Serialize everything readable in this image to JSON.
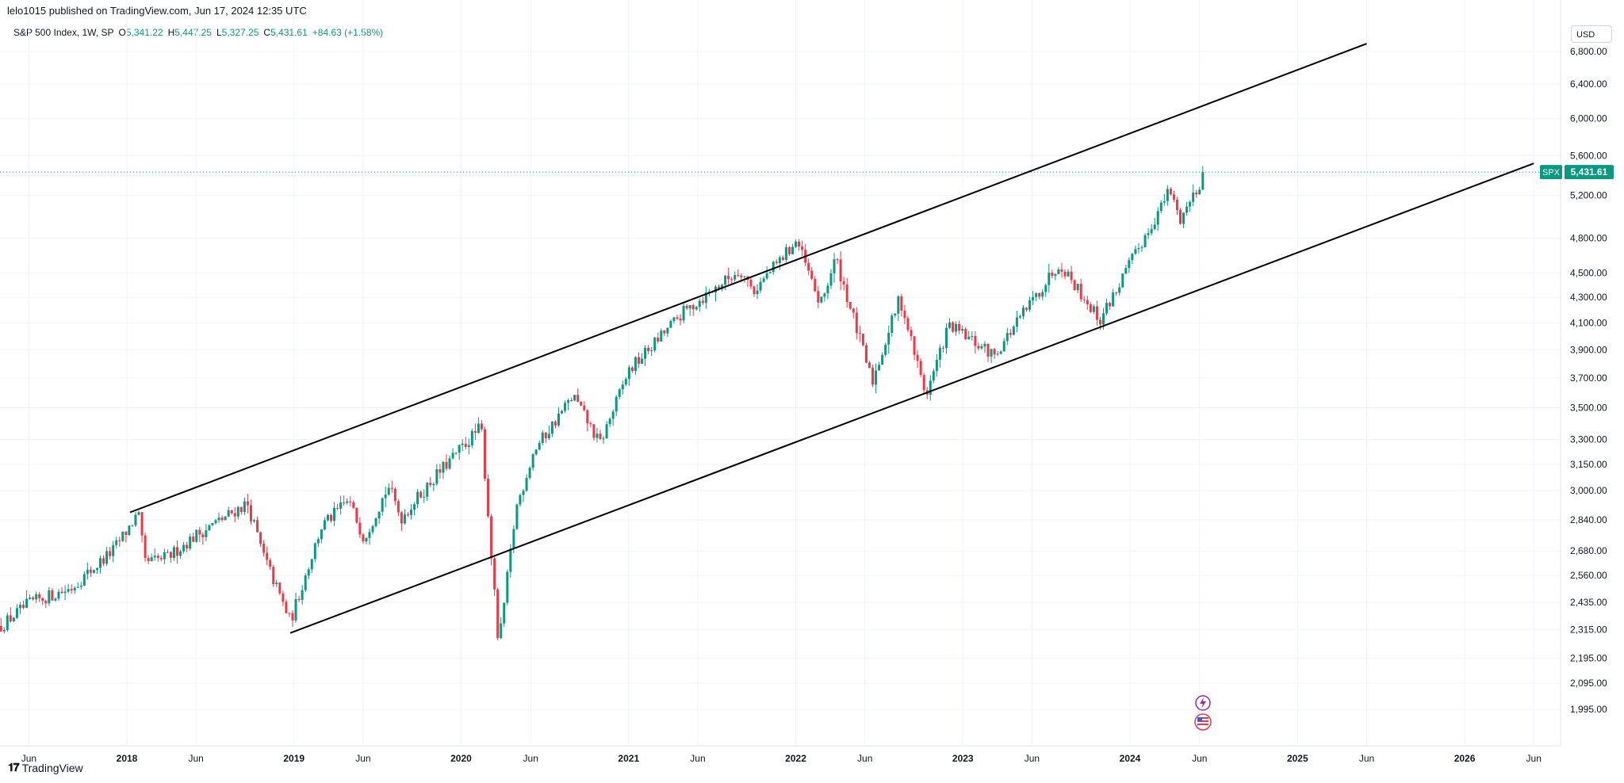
{
  "header": {
    "attribution": "lelo1015 published on TradingView.com, Jun 17, 2024 12:35 UTC"
  },
  "legend": {
    "symbol": "S&P 500 Index, 1W, SP",
    "open_label": "O",
    "open": "5,341.22",
    "high_label": "H",
    "high": "5,447.25",
    "low_label": "L",
    "low": "5,327.25",
    "close_label": "C",
    "close": "5,431.61",
    "change": "+84.63 (+1.58%)"
  },
  "price_scale": {
    "currency": "USD",
    "last_price_symbol": "SPX",
    "last_price": "5,431.61"
  },
  "footer": {
    "brand": "TradingView"
  },
  "colors": {
    "up": "#089981",
    "down": "#f23645",
    "line": "#000000",
    "grid": "#f0f3fa"
  },
  "chart_data": {
    "type": "candlestick",
    "title": "S&P 500 Index, 1W, SP",
    "log_scale": true,
    "grid": true,
    "ylim": [
      1900,
      7000
    ],
    "y_ticks": [
      "6,800.00",
      "6,400.00",
      "6,000.00",
      "5,600.00",
      "5,200.00",
      "4,800.00",
      "4,500.00",
      "4,300.00",
      "4,100.00",
      "3,900.00",
      "3,700.00",
      "3,500.00",
      "3,300.00",
      "3,150.00",
      "3,000.00",
      "2,840.00",
      "2,680.00",
      "2,560.00",
      "2,435.00",
      "2,315.00",
      "2,195.00",
      "2,095.00",
      "1,995.00"
    ],
    "x_ticks": [
      "Jun",
      "2018",
      "Jun",
      "2019",
      "Jun",
      "2020",
      "Jun",
      "2021",
      "Jun",
      "2022",
      "Jun",
      "2023",
      "Jun",
      "2024",
      "Jun",
      "2025",
      "Jun",
      "2026",
      "Jun"
    ],
    "x_tick_dates": [
      "2017-06-01",
      "2018-01-01",
      "2018-06-01",
      "2019-01-01",
      "2019-06-01",
      "2020-01-01",
      "2020-06-01",
      "2021-01-01",
      "2021-06-01",
      "2022-01-01",
      "2022-06-01",
      "2023-01-01",
      "2023-06-01",
      "2024-01-01",
      "2024-06-01",
      "2025-01-01",
      "2025-06-01",
      "2026-01-01",
      "2026-06-01"
    ],
    "price_path": [
      [
        "2017-04-01",
        2330
      ],
      [
        "2017-06-01",
        2430
      ],
      [
        "2017-09-01",
        2500
      ],
      [
        "2017-12-01",
        2680
      ],
      [
        "2018-01-26",
        2872
      ],
      [
        "2018-02-09",
        2620
      ],
      [
        "2018-04-01",
        2650
      ],
      [
        "2018-06-01",
        2760
      ],
      [
        "2018-09-21",
        2930
      ],
      [
        "2018-10-26",
        2660
      ],
      [
        "2018-12-24",
        2350
      ],
      [
        "2019-03-01",
        2800
      ],
      [
        "2019-04-30",
        2945
      ],
      [
        "2019-06-03",
        2745
      ],
      [
        "2019-07-26",
        3025
      ],
      [
        "2019-08-23",
        2850
      ],
      [
        "2019-11-01",
        3065
      ],
      [
        "2020-02-14",
        3380
      ],
      [
        "2020-03-23",
        2237
      ],
      [
        "2020-04-30",
        2900
      ],
      [
        "2020-06-08",
        3230
      ],
      [
        "2020-09-02",
        3580
      ],
      [
        "2020-10-30",
        3270
      ],
      [
        "2021-01-01",
        3750
      ],
      [
        "2021-04-30",
        4180
      ],
      [
        "2021-09-02",
        4530
      ],
      [
        "2021-10-01",
        4350
      ],
      [
        "2022-01-03",
        4780
      ],
      [
        "2022-02-24",
        4230
      ],
      [
        "2022-03-29",
        4630
      ],
      [
        "2022-06-17",
        3670
      ],
      [
        "2022-08-16",
        4300
      ],
      [
        "2022-10-12",
        3580
      ],
      [
        "2022-12-01",
        4080
      ],
      [
        "2023-03-10",
        3860
      ],
      [
        "2023-07-31",
        4590
      ],
      [
        "2023-10-27",
        4120
      ],
      [
        "2024-03-28",
        5250
      ],
      [
        "2024-04-19",
        4970
      ],
      [
        "2024-06-14",
        5431.61
      ]
    ],
    "annotations": {
      "channel_upper": {
        "start": [
          "2018-01-08",
          2880
        ],
        "end": [
          "2025-06-01",
          6900
        ]
      },
      "channel_lower": {
        "start": [
          "2018-12-24",
          2300
        ],
        "end": [
          "2026-06-01",
          5520
        ]
      },
      "last_price_line": 5431.61
    }
  }
}
